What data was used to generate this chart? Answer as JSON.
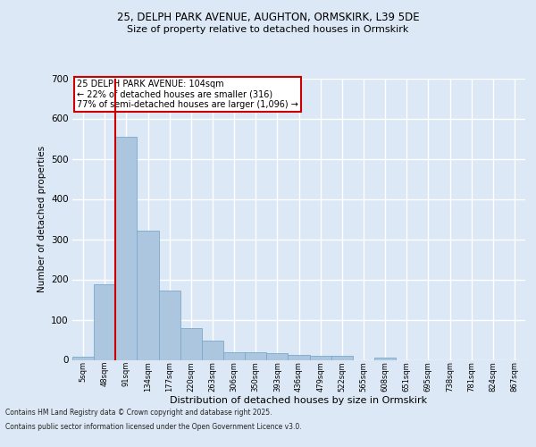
{
  "title_line1": "25, DELPH PARK AVENUE, AUGHTON, ORMSKIRK, L39 5DE",
  "title_line2": "Size of property relative to detached houses in Ormskirk",
  "xlabel": "Distribution of detached houses by size in Ormskirk",
  "ylabel": "Number of detached properties",
  "categories": [
    "5sqm",
    "48sqm",
    "91sqm",
    "134sqm",
    "177sqm",
    "220sqm",
    "263sqm",
    "306sqm",
    "350sqm",
    "393sqm",
    "436sqm",
    "479sqm",
    "522sqm",
    "565sqm",
    "608sqm",
    "651sqm",
    "695sqm",
    "738sqm",
    "781sqm",
    "824sqm",
    "867sqm"
  ],
  "values": [
    8,
    188,
    555,
    322,
    172,
    78,
    47,
    20,
    20,
    17,
    12,
    11,
    10,
    0,
    5,
    0,
    0,
    0,
    0,
    0,
    0
  ],
  "bar_color": "#adc6e0",
  "bar_edge_color": "#7aaac8",
  "vline_color": "#cc0000",
  "annotation_text": "25 DELPH PARK AVENUE: 104sqm\n← 22% of detached houses are smaller (316)\n77% of semi-detached houses are larger (1,096) →",
  "annotation_box_color": "#ffffff",
  "annotation_box_edge_color": "#cc0000",
  "ylim": [
    0,
    700
  ],
  "yticks": [
    0,
    100,
    200,
    300,
    400,
    500,
    600,
    700
  ],
  "background_color": "#dce8f5",
  "grid_color": "#ffffff",
  "footer_line1": "Contains HM Land Registry data © Crown copyright and database right 2025.",
  "footer_line2": "Contains public sector information licensed under the Open Government Licence v3.0."
}
